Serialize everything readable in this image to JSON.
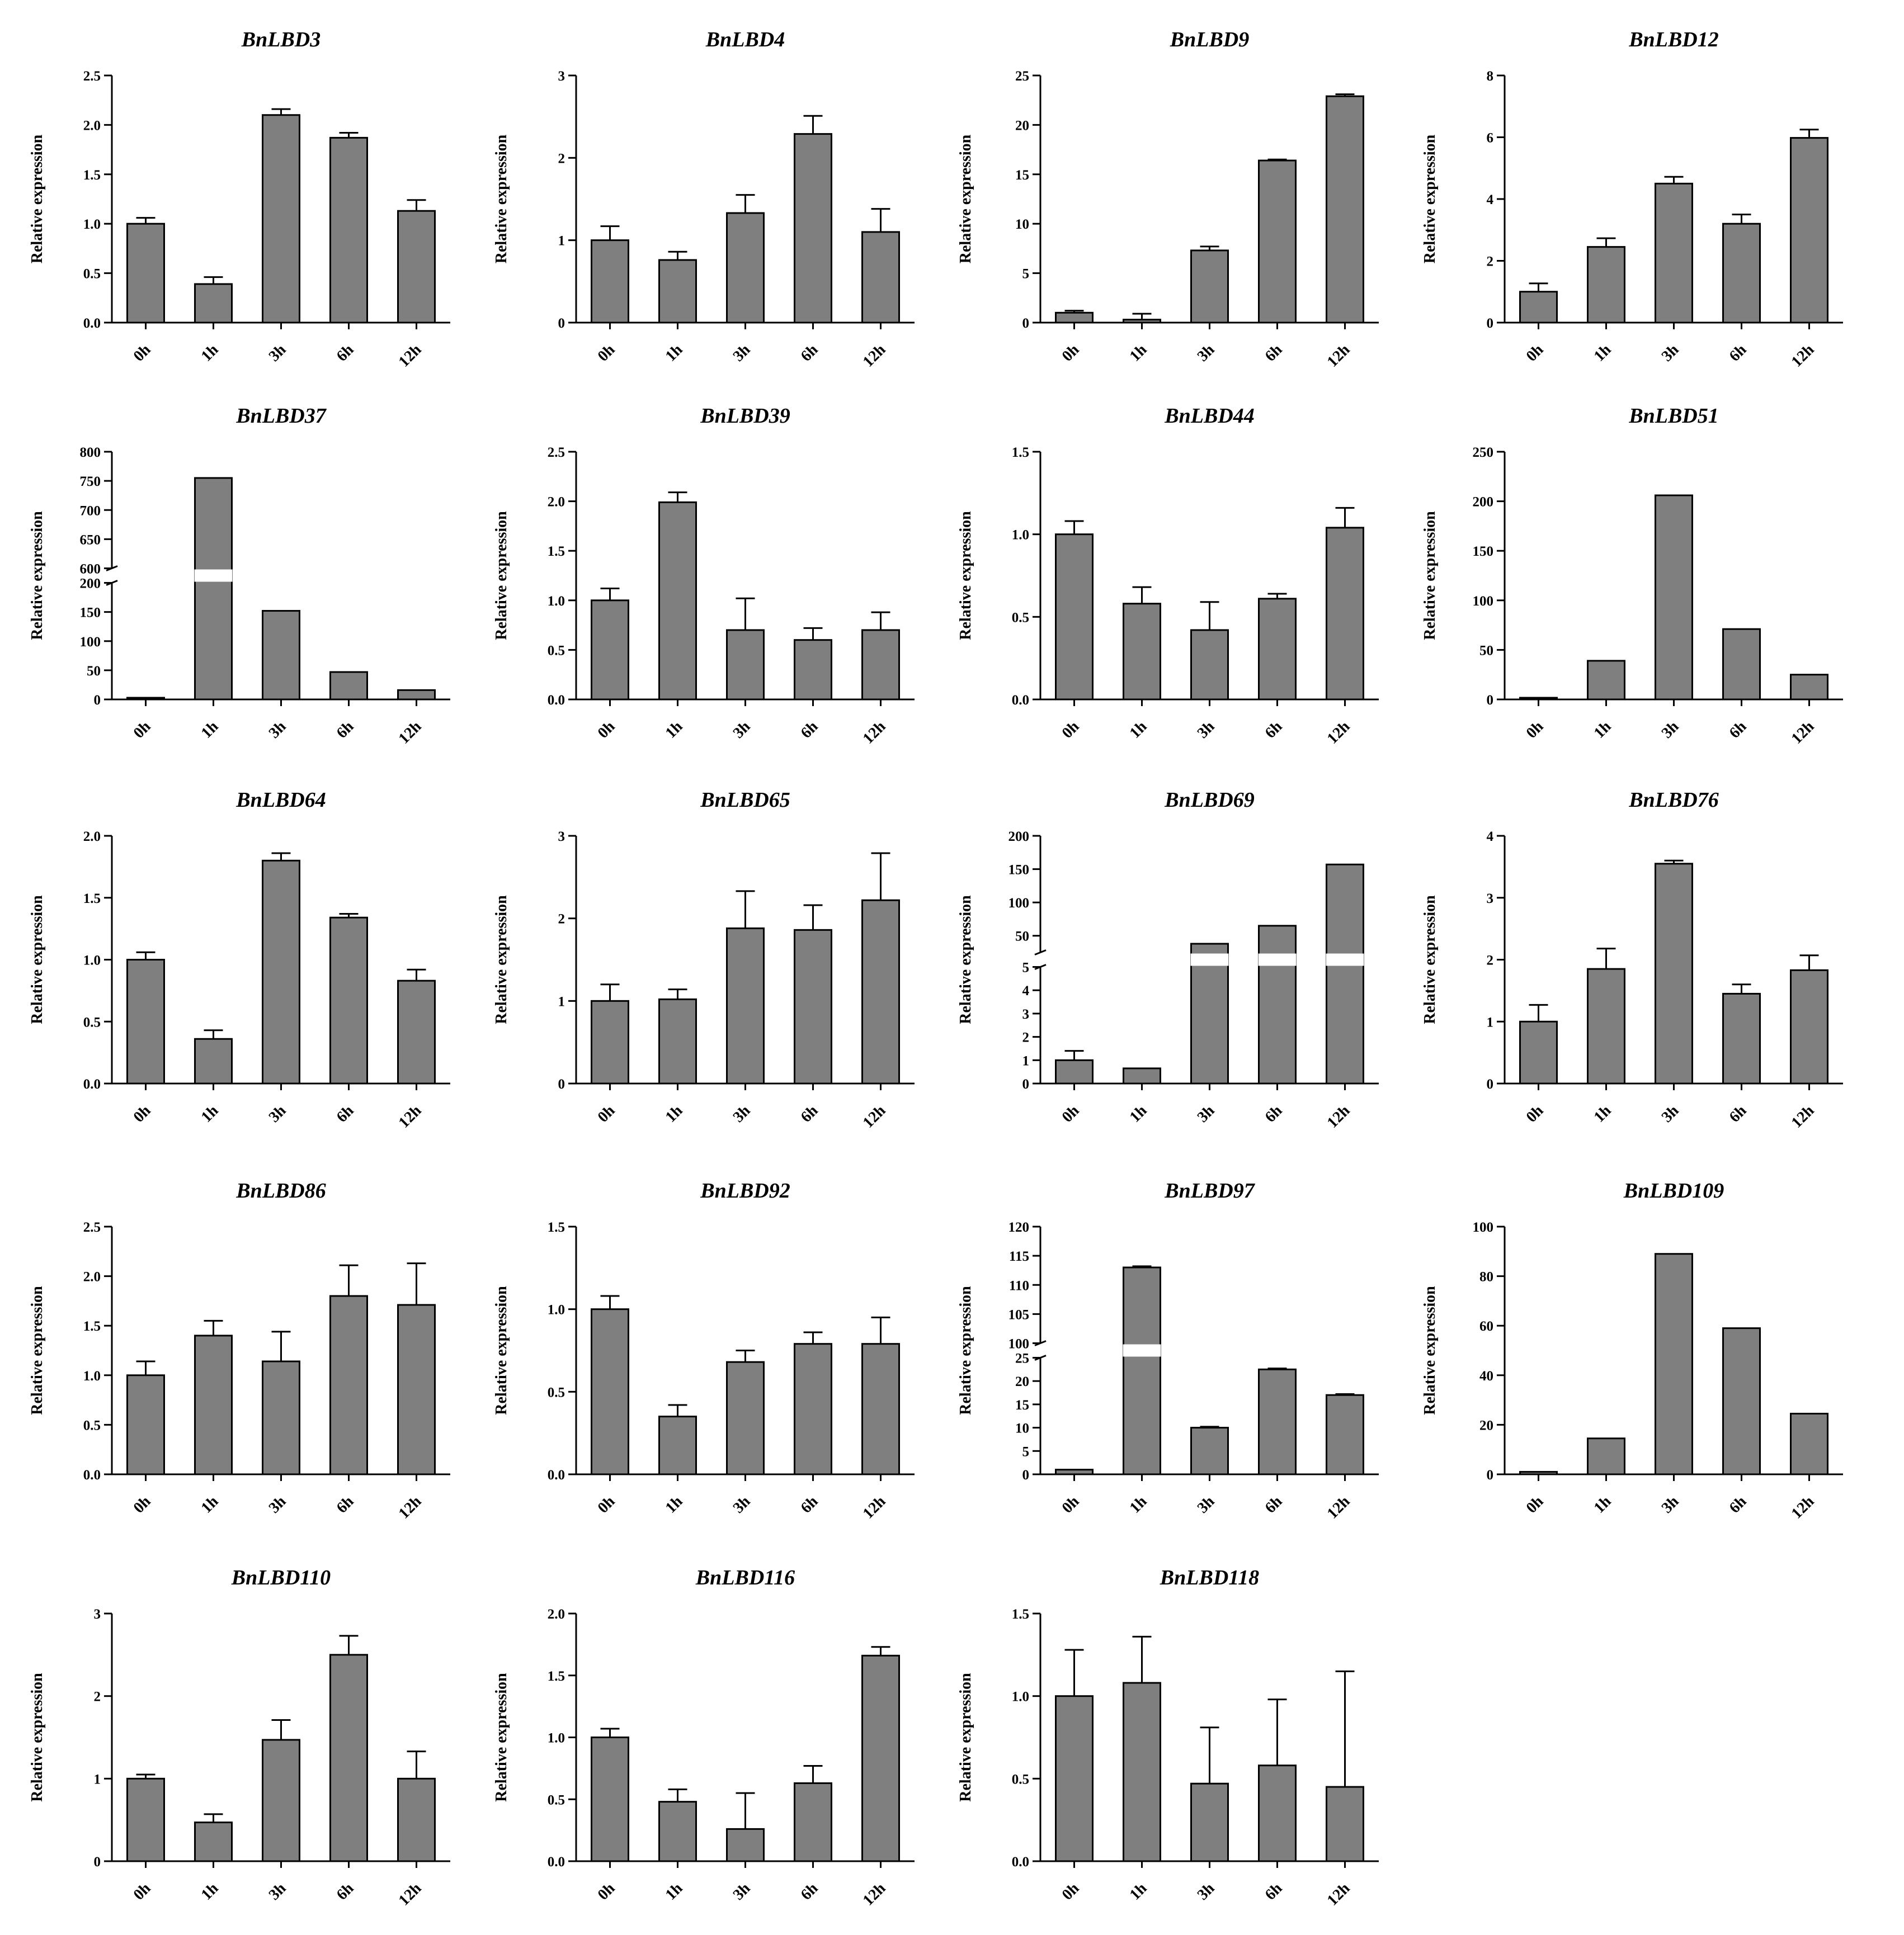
{
  "y_axis_label": "Relative expression",
  "categories": [
    "0h",
    "1h",
    "3h",
    "6h",
    "12h"
  ],
  "chart_data": [
    {
      "type": "bar",
      "title": "BnLBD3",
      "categories": [
        "0h",
        "1h",
        "3h",
        "6h",
        "12h"
      ],
      "values": [
        1.0,
        0.39,
        2.1,
        1.87,
        1.13
      ],
      "errors": [
        0.06,
        0.07,
        0.06,
        0.05,
        0.11
      ],
      "ylim": [
        0,
        2.5
      ],
      "ticks": [
        0,
        0.5,
        1,
        1.5,
        2,
        2.5
      ],
      "tick_labels": [
        "0.0",
        "0.5",
        "1.0",
        "1.5",
        "2.0",
        "2.5"
      ],
      "ylabel": "Relative expression"
    },
    {
      "type": "bar",
      "title": "BnLBD4",
      "categories": [
        "0h",
        "1h",
        "3h",
        "6h",
        "12h"
      ],
      "values": [
        1.0,
        0.76,
        1.33,
        2.29,
        1.1
      ],
      "errors": [
        0.17,
        0.1,
        0.22,
        0.22,
        0.28
      ],
      "ylim": [
        0,
        3
      ],
      "ticks": [
        0,
        1,
        2,
        3
      ],
      "tick_labels": [
        "0",
        "1",
        "2",
        "3"
      ],
      "ylabel": "Relative expression"
    },
    {
      "type": "bar",
      "title": "BnLBD9",
      "categories": [
        "0h",
        "1h",
        "3h",
        "6h",
        "12h"
      ],
      "values": [
        1.0,
        0.3,
        7.3,
        16.4,
        22.9
      ],
      "errors": [
        0.2,
        0.6,
        0.4,
        0.1,
        0.2
      ],
      "ylim": [
        0,
        25
      ],
      "ticks": [
        0,
        5,
        10,
        15,
        20,
        25
      ],
      "tick_labels": [
        "0",
        "5",
        "10",
        "15",
        "20",
        "25"
      ],
      "ylabel": "Relative expression"
    },
    {
      "type": "bar",
      "title": "BnLBD12",
      "categories": [
        "0h",
        "1h",
        "3h",
        "6h",
        "12h"
      ],
      "values": [
        1.0,
        2.45,
        4.5,
        3.2,
        5.98
      ],
      "errors": [
        0.27,
        0.28,
        0.22,
        0.3,
        0.27
      ],
      "ylim": [
        0,
        8
      ],
      "ticks": [
        0,
        2,
        4,
        6,
        8
      ],
      "tick_labels": [
        "0",
        "2",
        "4",
        "6",
        "8"
      ],
      "ylabel": "Relative expression"
    },
    {
      "type": "bar",
      "title": "BnLBD37",
      "categories": [
        "0h",
        "1h",
        "3h",
        "6h",
        "12h"
      ],
      "values": [
        1.0,
        755,
        152,
        47,
        16
      ],
      "errors": [
        0,
        0,
        0,
        0,
        0
      ],
      "ylim": [
        0,
        800
      ],
      "axis_break": {
        "lower": [
          0,
          200
        ],
        "upper": [
          600,
          800
        ]
      },
      "ticks": [
        0,
        50,
        100,
        150,
        200,
        600,
        650,
        700,
        750,
        800
      ],
      "tick_labels": [
        "0",
        "50",
        "100",
        "150",
        "200",
        "600",
        "650",
        "700",
        "750",
        "800"
      ],
      "ylabel": "Relative expression"
    },
    {
      "type": "bar",
      "title": "BnLBD39",
      "categories": [
        "0h",
        "1h",
        "3h",
        "6h",
        "12h"
      ],
      "values": [
        1.0,
        1.99,
        0.7,
        0.6,
        0.7
      ],
      "errors": [
        0.12,
        0.1,
        0.32,
        0.12,
        0.18
      ],
      "ylim": [
        0,
        2.5
      ],
      "ticks": [
        0,
        0.5,
        1,
        1.5,
        2,
        2.5
      ],
      "tick_labels": [
        "0.0",
        "0.5",
        "1.0",
        "1.5",
        "2.0",
        "2.5"
      ],
      "ylabel": "Relative expression"
    },
    {
      "type": "bar",
      "title": "BnLBD44",
      "categories": [
        "0h",
        "1h",
        "3h",
        "6h",
        "12h"
      ],
      "values": [
        1.0,
        0.58,
        0.42,
        0.61,
        1.04
      ],
      "errors": [
        0.08,
        0.1,
        0.17,
        0.03,
        0.12
      ],
      "ylim": [
        0,
        1.5
      ],
      "ticks": [
        0,
        0.5,
        1,
        1.5
      ],
      "tick_labels": [
        "0.0",
        "0.5",
        "1.0",
        "1.5"
      ],
      "ylabel": "Relative expression"
    },
    {
      "type": "bar",
      "title": "BnLBD51",
      "categories": [
        "0h",
        "1h",
        "3h",
        "6h",
        "12h"
      ],
      "values": [
        1.0,
        39,
        206,
        71,
        25
      ],
      "errors": [
        0,
        0,
        0,
        0,
        0
      ],
      "ylim": [
        0,
        250
      ],
      "ticks": [
        0,
        50,
        100,
        150,
        200,
        250
      ],
      "tick_labels": [
        "0",
        "50",
        "100",
        "150",
        "200",
        "250"
      ],
      "ylabel": "Relative expression"
    },
    {
      "type": "bar",
      "title": "BnLBD64",
      "categories": [
        "0h",
        "1h",
        "3h",
        "6h",
        "12h"
      ],
      "values": [
        1.0,
        0.36,
        1.8,
        1.34,
        0.83
      ],
      "errors": [
        0.06,
        0.07,
        0.06,
        0.03,
        0.09
      ],
      "ylim": [
        0,
        2
      ],
      "ticks": [
        0,
        0.5,
        1,
        1.5,
        2
      ],
      "tick_labels": [
        "0.0",
        "0.5",
        "1.0",
        "1.5",
        "2.0"
      ],
      "ylabel": "Relative expression"
    },
    {
      "type": "bar",
      "title": "BnLBD65",
      "categories": [
        "0h",
        "1h",
        "3h",
        "6h",
        "12h"
      ],
      "values": [
        1.0,
        1.02,
        1.88,
        1.86,
        2.22
      ],
      "errors": [
        0.2,
        0.12,
        0.45,
        0.3,
        0.57
      ],
      "ylim": [
        0,
        3
      ],
      "ticks": [
        0,
        1,
        2,
        3
      ],
      "tick_labels": [
        "0",
        "1",
        "2",
        "3"
      ],
      "ylabel": "Relative expression"
    },
    {
      "type": "bar",
      "title": "BnLBD69",
      "categories": [
        "0h",
        "1h",
        "3h",
        "6h",
        "12h"
      ],
      "values": [
        1.0,
        0.65,
        38,
        65,
        157
      ],
      "errors": [
        0.4,
        0,
        0,
        0,
        0
      ],
      "ylim": [
        0,
        200
      ],
      "axis_break": {
        "lower": [
          0,
          5
        ],
        "upper": [
          25,
          200
        ]
      },
      "ticks": [
        0,
        1,
        2,
        3,
        4,
        5,
        50,
        100,
        150,
        200
      ],
      "tick_labels": [
        "0",
        "1",
        "2",
        "3",
        "4",
        "5",
        "50",
        "100",
        "150",
        "200"
      ],
      "ylabel": "Relative expression"
    },
    {
      "type": "bar",
      "title": "BnLBD76",
      "categories": [
        "0h",
        "1h",
        "3h",
        "6h",
        "12h"
      ],
      "values": [
        1.0,
        1.85,
        3.55,
        1.45,
        1.83
      ],
      "errors": [
        0.27,
        0.33,
        0.05,
        0.15,
        0.24
      ],
      "ylim": [
        0,
        4
      ],
      "ticks": [
        0,
        1,
        2,
        3,
        4
      ],
      "tick_labels": [
        "0",
        "1",
        "2",
        "3",
        "4"
      ],
      "ylabel": "Relative expression"
    },
    {
      "type": "bar",
      "title": "BnLBD86",
      "categories": [
        "0h",
        "1h",
        "3h",
        "6h",
        "12h"
      ],
      "values": [
        1.0,
        1.4,
        1.14,
        1.8,
        1.71
      ],
      "errors": [
        0.14,
        0.15,
        0.3,
        0.31,
        0.42
      ],
      "ylim": [
        0,
        2.5
      ],
      "ticks": [
        0,
        0.5,
        1,
        1.5,
        2,
        2.5
      ],
      "tick_labels": [
        "0.0",
        "0.5",
        "1.0",
        "1.5",
        "2.0",
        "2.5"
      ],
      "ylabel": "Relative expression"
    },
    {
      "type": "bar",
      "title": "BnLBD92",
      "categories": [
        "0h",
        "1h",
        "3h",
        "6h",
        "12h"
      ],
      "values": [
        1.0,
        0.35,
        0.68,
        0.79,
        0.79
      ],
      "errors": [
        0.08,
        0.07,
        0.07,
        0.07,
        0.16
      ],
      "ylim": [
        0,
        1.5
      ],
      "ticks": [
        0,
        0.5,
        1,
        1.5
      ],
      "tick_labels": [
        "0.0",
        "0.5",
        "1.0",
        "1.5"
      ],
      "ylabel": "Relative expression"
    },
    {
      "type": "bar",
      "title": "BnLBD97",
      "categories": [
        "0h",
        "1h",
        "3h",
        "6h",
        "12h"
      ],
      "values": [
        1.0,
        113,
        10,
        22.5,
        17
      ],
      "errors": [
        0,
        0.2,
        0.2,
        0.2,
        0.2
      ],
      "ylim": [
        0,
        120
      ],
      "axis_break": {
        "lower": [
          0,
          25
        ],
        "upper": [
          100,
          120
        ]
      },
      "ticks": [
        0,
        5,
        10,
        15,
        20,
        25,
        100,
        105,
        110,
        115,
        120
      ],
      "tick_labels": [
        "0",
        "5",
        "10",
        "15",
        "20",
        "25",
        "100",
        "105",
        "110",
        "115",
        "120"
      ],
      "ylabel": "Relative expression"
    },
    {
      "type": "bar",
      "title": "BnLBD109",
      "categories": [
        "0h",
        "1h",
        "3h",
        "6h",
        "12h"
      ],
      "values": [
        1.0,
        14.5,
        89,
        59,
        24.5
      ],
      "errors": [
        0,
        0,
        0,
        0,
        0
      ],
      "ylim": [
        0,
        100
      ],
      "ticks": [
        0,
        20,
        40,
        60,
        80,
        100
      ],
      "tick_labels": [
        "0",
        "20",
        "40",
        "60",
        "80",
        "100"
      ],
      "ylabel": "Relative expression"
    },
    {
      "type": "bar",
      "title": "BnLBD110",
      "categories": [
        "0h",
        "1h",
        "3h",
        "6h",
        "12h"
      ],
      "values": [
        1.0,
        0.47,
        1.47,
        2.5,
        1.0
      ],
      "errors": [
        0.05,
        0.1,
        0.24,
        0.23,
        0.33
      ],
      "ylim": [
        0,
        3
      ],
      "ticks": [
        0,
        1,
        2,
        3
      ],
      "tick_labels": [
        "0",
        "1",
        "2",
        "3"
      ],
      "ylabel": "Relative expression"
    },
    {
      "type": "bar",
      "title": "BnLBD116",
      "categories": [
        "0h",
        "1h",
        "3h",
        "6h",
        "12h"
      ],
      "values": [
        1.0,
        0.48,
        0.26,
        0.63,
        1.66
      ],
      "errors": [
        0.07,
        0.1,
        0.29,
        0.14,
        0.07
      ],
      "ylim": [
        0,
        2
      ],
      "ticks": [
        0,
        0.5,
        1,
        1.5,
        2
      ],
      "tick_labels": [
        "0.0",
        "0.5",
        "1.0",
        "1.5",
        "2.0"
      ],
      "ylabel": "Relative expression"
    },
    {
      "type": "bar",
      "title": "BnLBD118",
      "categories": [
        "0h",
        "1h",
        "3h",
        "6h",
        "12h"
      ],
      "values": [
        1.0,
        1.08,
        0.47,
        0.58,
        0.45
      ],
      "errors": [
        0.28,
        0.28,
        0.34,
        0.4,
        0.7
      ],
      "ylim": [
        0,
        1.5
      ],
      "ticks": [
        0,
        0.5,
        1,
        1.5
      ],
      "tick_labels": [
        "0.0",
        "0.5",
        "1.0",
        "1.5"
      ],
      "ylabel": "Relative expression"
    }
  ],
  "colors": {
    "bar_fill": "#7f7f7f",
    "ink": "#000000",
    "background": "#ffffff"
  }
}
